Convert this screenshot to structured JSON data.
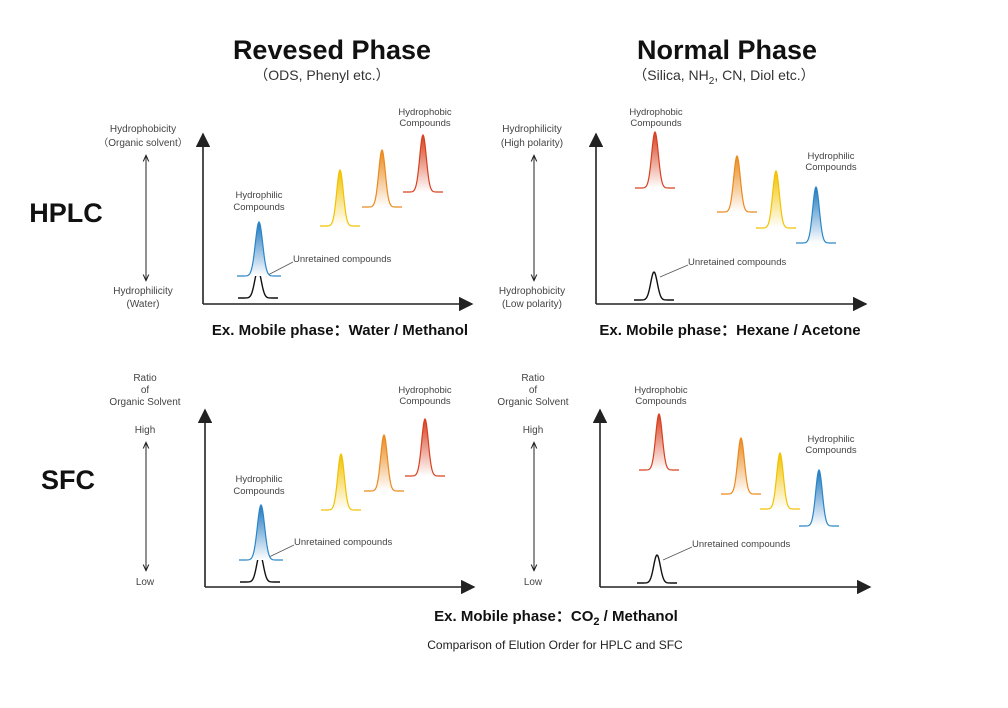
{
  "title_rp": "Revesed Phase",
  "sub_rp": "（ODS, Phenyl etc.）",
  "title_np": "Normal Phase",
  "sub_np_a": "（Silica, NH",
  "sub_np_sub": "2",
  "sub_np_b": ", CN, Diol etc.）",
  "row_hplc": "HPLC",
  "row_sfc": "SFC",
  "rp_hplc_top1": "Hydrophobicity",
  "rp_hplc_top2": "（Organic solvent）",
  "rp_hplc_bot1": "Hydrophilicity",
  "rp_hplc_bot2": "(Water)",
  "np_hplc_top1": "Hydrophilicity",
  "np_hplc_top2": "(High polarity)",
  "np_hplc_bot1": "Hydrophobicity",
  "np_hplc_bot2": "(Low polarity)",
  "sfc_ratio1": "Ratio",
  "sfc_ratio2": "of",
  "sfc_ratio3": "Organic Solvent",
  "sfc_high": "High",
  "sfc_low": "Low",
  "hydrophilic1": "Hydrophilic",
  "hydrophobic1": "Hydrophobic",
  "compounds": "Compounds",
  "unretained": "Unretained compounds",
  "mobile_rp_hplc": "Ex. Mobile phase：Water / Methanol",
  "mobile_np_hplc": "Ex. Mobile phase：Hexane / Acetone",
  "mobile_sfc_a": "Ex. Mobile phase：CO",
  "mobile_sfc_sub": "2",
  "mobile_sfc_b": " / Methanol",
  "caption": "Comparison of Elution Order for HPLC and SFC",
  "colors": {
    "blue": "#2a86c8",
    "yellow": "#f2c200",
    "orange": "#ea8a1e",
    "red": "#d7401f",
    "black": "#111111"
  }
}
